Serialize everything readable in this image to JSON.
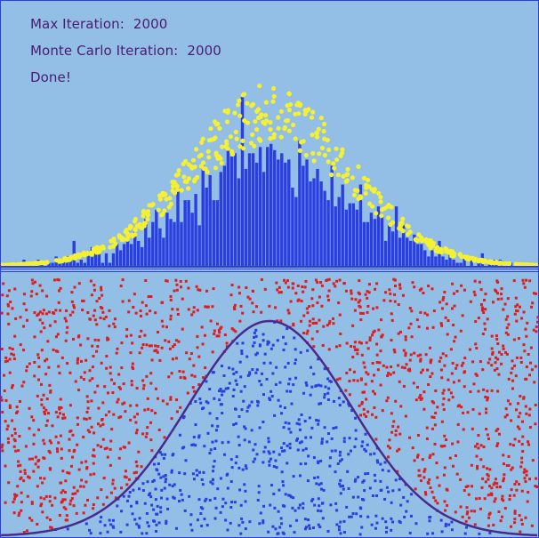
{
  "status": {
    "max_iteration_label": "Max Iteration:",
    "max_iteration_value": "2000",
    "monte_carlo_label": "Monte Carlo Iteration:",
    "monte_carlo_value": "2000",
    "state": "Done!"
  },
  "colors": {
    "background": "#93bee6",
    "histogram_bars": "#2b3fe0",
    "trace_points": "#f4f032",
    "accepted_points": "#2b3fe0",
    "rejected_points": "#e01c1c",
    "density_curve": "#4a2a8a",
    "text": "#4a1c6e"
  },
  "simulation": {
    "distribution": "normal",
    "mean": 0,
    "std": 1,
    "x_range": [
      -3.3,
      3.3
    ],
    "sample_count": 2000
  }
}
